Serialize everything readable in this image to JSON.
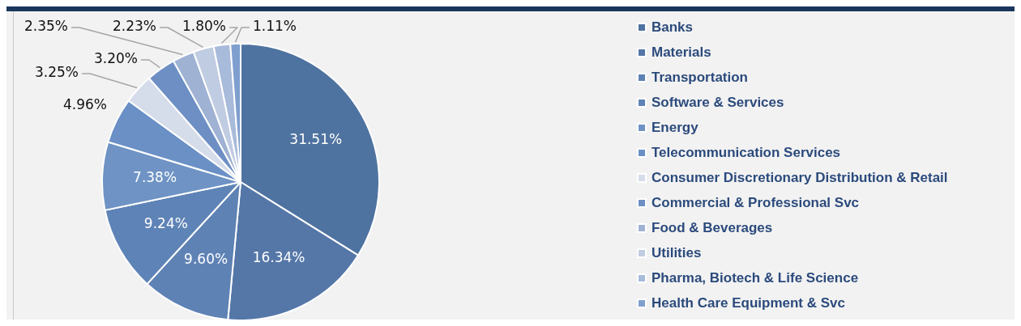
{
  "chart_data": {
    "type": "pie",
    "categories": [
      "Banks",
      "Materials",
      "Transportation",
      "Software & Services",
      "Energy",
      "Telecommunication Services",
      "Consumer Discretionary Distribution & Retail",
      "Commercial & Professional Svc",
      "Food & Beverages",
      "Utilities",
      "Pharma, Biotech & Life Science",
      "Health Care Equipment & Svc"
    ],
    "values": [
      31.51,
      16.34,
      9.6,
      9.24,
      7.38,
      4.96,
      3.25,
      3.2,
      2.35,
      2.23,
      1.8,
      1.11
    ],
    "value_labels": [
      "31.51%",
      "16.34%",
      "9.60%",
      "9.24%",
      "7.38%",
      "4.96%",
      "3.25%",
      "3.20%",
      "2.35%",
      "2.23%",
      "1.80%",
      "1.11%"
    ],
    "colors": [
      "#4f73a0",
      "#5577a8",
      "#5f82b5",
      "#5e83b6",
      "#6e93c4",
      "#6a90c6",
      "#d5dcea",
      "#6d8fc4",
      "#9fb2d3",
      "#c0cce2",
      "#a9bbdb",
      "#7f9fcf"
    ],
    "legend": "right"
  }
}
